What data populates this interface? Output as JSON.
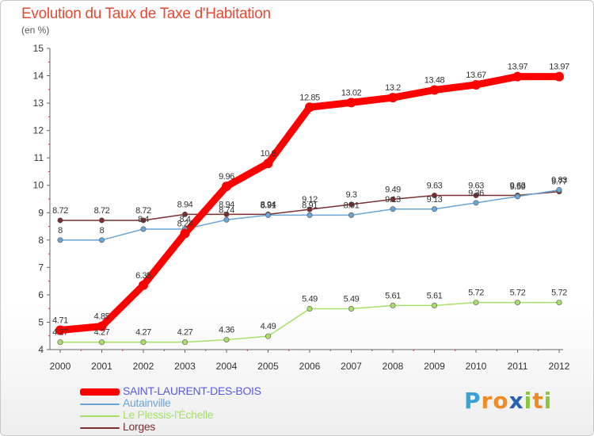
{
  "title": "Evolution du Taux de Taxe d'Habitation",
  "unit_label": "(en %)",
  "logo": {
    "letters": [
      "P",
      "r",
      "o",
      "x",
      "i",
      "t",
      "i"
    ],
    "colors": [
      "#3aa0d8",
      "#f08a24",
      "#f08a24",
      "#2a60b0",
      "#8cc63f",
      "#f08a24",
      "#8cc63f"
    ]
  },
  "chart_data": {
    "type": "line",
    "title": "Evolution du Taux de Taxe d'Habitation",
    "ylabel": "(en %)",
    "xlabel": "",
    "x": [
      "2000",
      "2001",
      "2002",
      "2003",
      "2004",
      "2005",
      "2006",
      "2007",
      "2008",
      "2009",
      "2010",
      "2011",
      "2012"
    ],
    "ylim": [
      4,
      15
    ],
    "yticks": [
      "4",
      "5",
      "6",
      "7",
      "8",
      "9",
      "10",
      "11",
      "12",
      "13",
      "14",
      "15"
    ],
    "grid": false,
    "legend_position": "bottom-left",
    "series": [
      {
        "name": "SAINT-LAURENT-DES-BOIS",
        "color": "#ff0000",
        "label_color": "#5a5ae0",
        "values": [
          4.71,
          4.85,
          6.35,
          8.24,
          9.96,
          10.8,
          12.85,
          13.02,
          13.2,
          13.48,
          13.67,
          13.97,
          13.97
        ],
        "labels": [
          "4.71",
          "4.85",
          "6.35",
          "8.24",
          "9.96",
          "10.8",
          "12.85",
          "13.02",
          "13.2",
          "13.48",
          "13.67",
          "13.97",
          "13.97"
        ]
      },
      {
        "name": "Autainville",
        "color": "#6aa5d8",
        "label_color": "#6aa5d8",
        "values": [
          8,
          8,
          8.4,
          8.4,
          8.74,
          8.91,
          8.91,
          8.91,
          9.13,
          9.13,
          9.36,
          9.59,
          9.83
        ],
        "labels": [
          "8",
          "8",
          "8.4",
          "8.4",
          "8.74",
          "8.91",
          "8.91",
          "8.91",
          "9.13",
          "9.13",
          "9.36",
          "9.59",
          "9.83"
        ]
      },
      {
        "name": "Le Plessis-l'Échelle",
        "color": "#a6e06a",
        "label_color": "#a6e06a",
        "values": [
          4.27,
          4.27,
          4.27,
          4.27,
          4.36,
          4.49,
          5.49,
          5.49,
          5.61,
          5.61,
          5.72,
          5.72,
          5.72
        ],
        "labels": [
          "4.27",
          "4.27",
          "4.27",
          "4.27",
          "4.36",
          "4.49",
          "5.49",
          "5.49",
          "5.61",
          "5.61",
          "5.72",
          "5.72",
          "5.72"
        ]
      },
      {
        "name": "Lorges",
        "color": "#7a3030",
        "label_color": "#7a3030",
        "values": [
          8.72,
          8.72,
          8.72,
          8.94,
          8.94,
          8.94,
          9.12,
          9.3,
          9.49,
          9.63,
          9.63,
          9.63,
          9.77
        ],
        "labels": [
          "8.72",
          "8.72",
          "8.72",
          "8.94",
          "8.94",
          "8.94",
          "9.12",
          "9.3",
          "9.49",
          "9.63",
          "9.63",
          "9.63",
          "9.77"
        ]
      }
    ]
  }
}
